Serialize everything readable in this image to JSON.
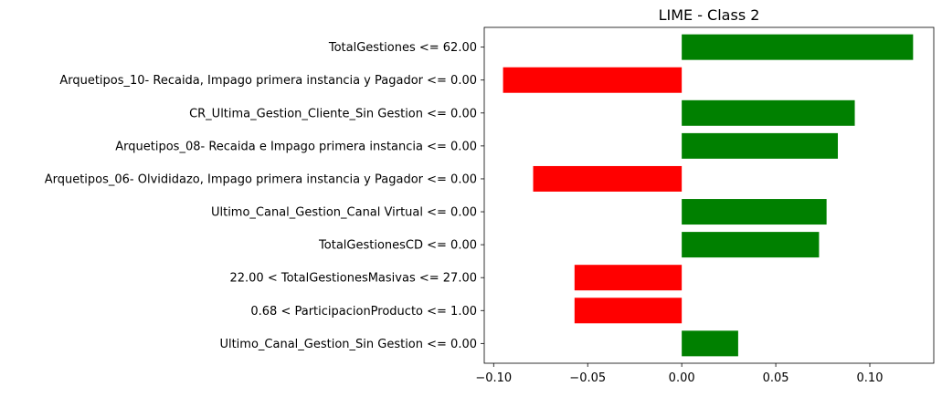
{
  "chart_data": {
    "type": "bar",
    "orientation": "horizontal",
    "title": "LIME - Class 2",
    "xlabel": "",
    "ylabel": "",
    "xlim": [
      -0.105,
      0.134
    ],
    "grid": false,
    "x_ticks": [
      -0.1,
      -0.05,
      0.0,
      0.05,
      0.1
    ],
    "x_tick_labels": [
      "−0.10",
      "−0.05",
      "0.00",
      "0.05",
      "0.10"
    ],
    "positive_color": "#008000",
    "negative_color": "#ff0000",
    "categories": [
      "TotalGestiones <= 62.00",
      "Arquetipos_10- Recaida, Impago primera instancia y Pagador <= 0.00",
      "CR_Ultima_Gestion_Cliente_Sin Gestion <= 0.00",
      "Arquetipos_08- Recaida e Impago primera instancia <= 0.00",
      "Arquetipos_06- Olvididazo, Impago primera instancia y Pagador <= 0.00",
      "Ultimo_Canal_Gestion_Canal Virtual <= 0.00",
      "TotalGestionesCD <= 0.00",
      "22.00 < TotalGestionesMasivas <= 27.00",
      "0.68 < ParticipacionProducto <= 1.00",
      "Ultimo_Canal_Gestion_Sin Gestion <= 0.00"
    ],
    "values": [
      0.123,
      -0.095,
      0.092,
      0.083,
      -0.079,
      0.077,
      0.073,
      -0.057,
      -0.057,
      0.03
    ]
  }
}
